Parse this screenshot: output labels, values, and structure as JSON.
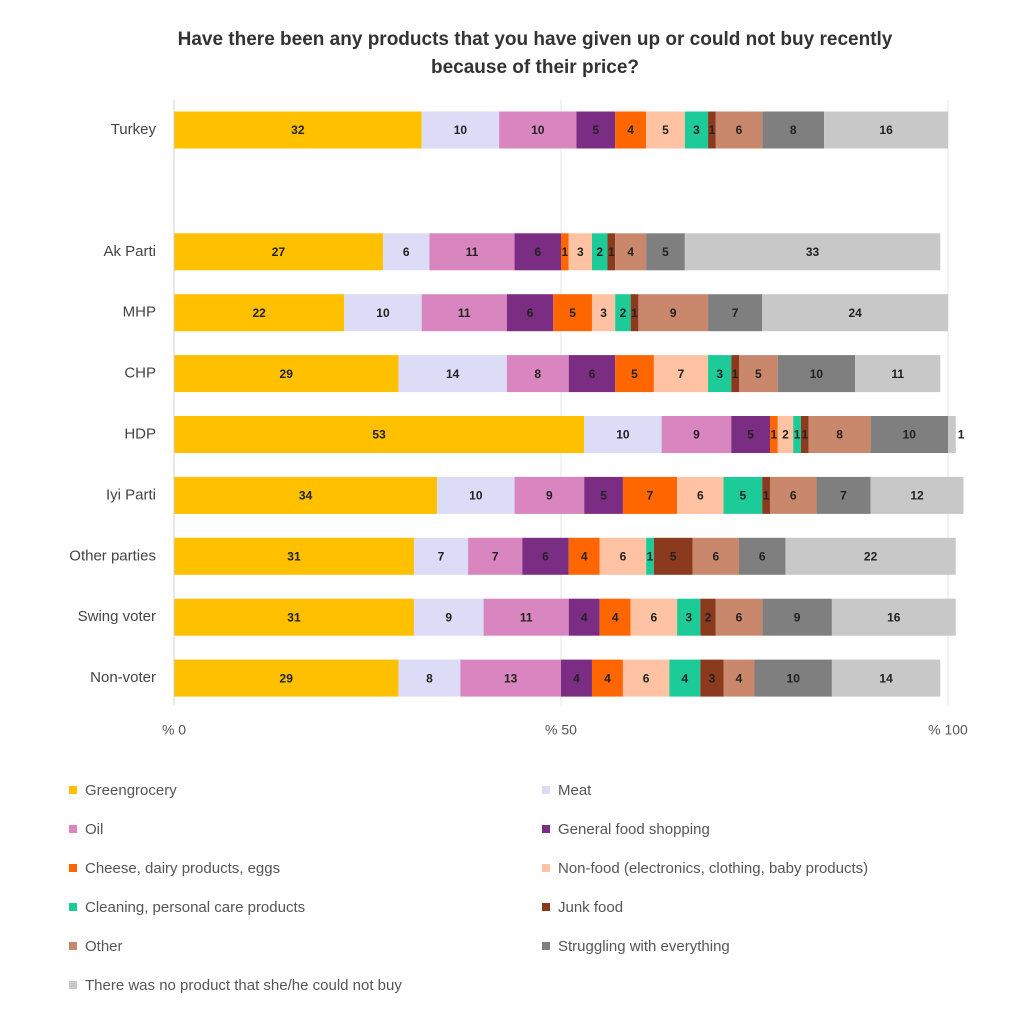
{
  "chart_data": {
    "type": "stacked-bar-horizontal",
    "title": "Have there been any products that you have given up or could not buy recently because of their price?",
    "categories": [
      "Turkey",
      null,
      "Ak Parti",
      "MHP",
      "CHP",
      "HDP",
      "Iyi Parti",
      "Other parties",
      "Swing voter",
      "Non-voter"
    ],
    "series": [
      {
        "name": "Greengrocery",
        "color": "#ffc000",
        "values": [
          32,
          null,
          27,
          22,
          29,
          53,
          34,
          31,
          31,
          29
        ]
      },
      {
        "name": "Meat",
        "color": "#dcdcf6",
        "values": [
          10,
          null,
          6,
          10,
          14,
          10,
          10,
          7,
          9,
          8
        ]
      },
      {
        "name": "Oil",
        "color": "#d986c0",
        "values": [
          10,
          null,
          11,
          11,
          8,
          9,
          9,
          7,
          11,
          13
        ]
      },
      {
        "name": "General food shopping",
        "color": "#7b2c83",
        "values": [
          5,
          null,
          6,
          6,
          6,
          5,
          5,
          6,
          4,
          4
        ]
      },
      {
        "name": "Cheese, dairy products, eggs",
        "color": "#ff6600",
        "values": [
          4,
          null,
          1,
          5,
          5,
          1,
          7,
          4,
          4,
          4
        ]
      },
      {
        "name": "Non-food (electronics, clothing, baby products)",
        "color": "#ffc3a3",
        "values": [
          5,
          null,
          3,
          3,
          7,
          2,
          6,
          6,
          6,
          6
        ]
      },
      {
        "name": "Cleaning, personal care products",
        "color": "#1ccb98",
        "values": [
          3,
          null,
          2,
          2,
          3,
          1,
          5,
          1,
          3,
          4
        ]
      },
      {
        "name": "Junk food",
        "color": "#8b3a1e",
        "values": [
          1,
          null,
          1,
          1,
          1,
          1,
          1,
          5,
          2,
          3
        ]
      },
      {
        "name": "Other",
        "color": "#c9876b",
        "values": [
          6,
          null,
          4,
          9,
          5,
          8,
          6,
          6,
          6,
          4
        ]
      },
      {
        "name": "Struggling with everything",
        "color": "#7f7f7f",
        "values": [
          8,
          null,
          5,
          7,
          10,
          10,
          7,
          6,
          9,
          10
        ]
      },
      {
        "name": "There was no product that she/he could not buy",
        "color": "#c8c8c8",
        "values": [
          16,
          null,
          33,
          24,
          11,
          1,
          12,
          22,
          16,
          14
        ]
      }
    ],
    "xlim": [
      0,
      100
    ],
    "xticks": [
      {
        "value": 0,
        "label": "% 0"
      },
      {
        "value": 50,
        "label": "% 50"
      },
      {
        "value": 100,
        "label": "% 100"
      }
    ],
    "grid": true
  }
}
